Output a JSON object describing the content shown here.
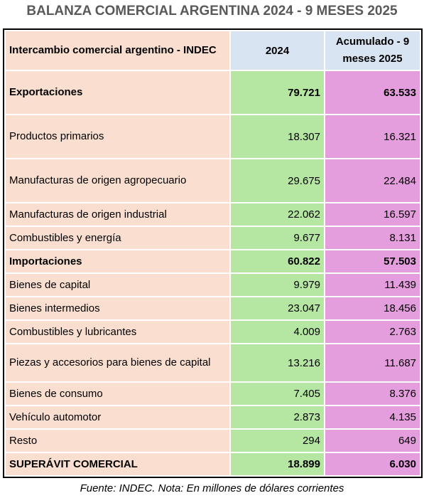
{
  "title": "BALANZA COMERCIAL ARGENTINA 2024 - 9 MESES 2025",
  "header": {
    "col1": "Intercambio comercial argentino - INDEC",
    "col2": "2024",
    "col3": "Acumulado - 9 meses 2025"
  },
  "rows": [
    {
      "label": "Exportaciones",
      "v2024": "79.721",
      "v2025": "63.533"
    },
    {
      "label": "Productos primarios",
      "v2024": "18.307",
      "v2025": "16.321"
    },
    {
      "label": "Manufacturas de origen agropecuario",
      "v2024": "29.675",
      "v2025": "22.484"
    },
    {
      "label": "Manufacturas de origen industrial",
      "v2024": "22.062",
      "v2025": "16.597"
    },
    {
      "label": "Combustibles y energía",
      "v2024": "9.677",
      "v2025": "8.131"
    },
    {
      "label": "Importaciones",
      "v2024": "60.822",
      "v2025": "57.503"
    },
    {
      "label": "Bienes de capital",
      "v2024": "9.979",
      "v2025": "11.439"
    },
    {
      "label": "Bienes intermedios",
      "v2024": "23.047",
      "v2025": "18.456"
    },
    {
      "label": "Combustibles y lubricantes",
      "v2024": "4.009",
      "v2025": "2.763"
    },
    {
      "label": "Piezas y accesorios para bienes de capital",
      "v2024": "13.216",
      "v2025": "11.687"
    },
    {
      "label": "Bienes de consumo",
      "v2024": "7.405",
      "v2025": "8.376"
    },
    {
      "label": "Vehículo automotor",
      "v2024": "2.873",
      "v2025": "4.135"
    },
    {
      "label": "Resto",
      "v2024": "294",
      "v2025": "649"
    },
    {
      "label": "SUPERÁVIT COMERCIAL",
      "v2024": "18.899",
      "v2025": "6.030"
    }
  ],
  "source": "Fuente: INDEC. Nota: En millones de dólares corrientes",
  "colors": {
    "label_bg": "#fadfd0",
    "col2024_bg": "#b5e6a2",
    "col2025_bg": "#e59edd",
    "header_bg": "#d9e4f2"
  }
}
